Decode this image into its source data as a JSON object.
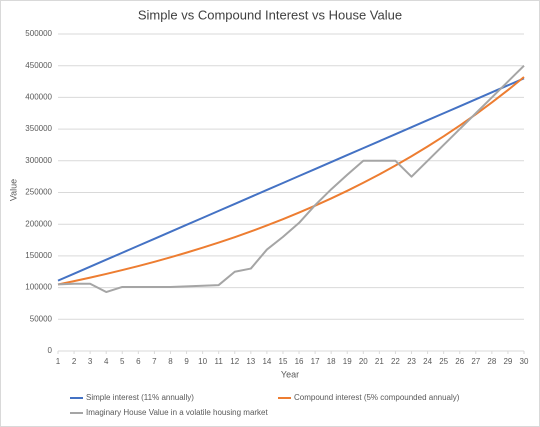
{
  "chart_data": {
    "type": "line",
    "title": "Simple vs Compound Interest vs House Value",
    "x_label": "Year",
    "y_label": "Value",
    "x": [
      1,
      2,
      3,
      4,
      5,
      6,
      7,
      8,
      9,
      10,
      11,
      12,
      13,
      14,
      15,
      16,
      17,
      18,
      19,
      20,
      21,
      22,
      23,
      24,
      25,
      26,
      27,
      28,
      29,
      30
    ],
    "xlim": [
      1,
      30
    ],
    "xticks": [
      1,
      2,
      3,
      4,
      5,
      6,
      7,
      8,
      9,
      10,
      11,
      12,
      13,
      14,
      15,
      16,
      17,
      18,
      19,
      20,
      21,
      22,
      23,
      24,
      25,
      26,
      27,
      28,
      29,
      30
    ],
    "ylim": [
      0,
      500000
    ],
    "yticks": [
      0,
      50000,
      100000,
      150000,
      200000,
      250000,
      300000,
      350000,
      400000,
      450000,
      500000
    ],
    "grid": true,
    "legend": "bottom",
    "series": [
      {
        "name": "Simple interest (11% annually)",
        "color": "#4472c4",
        "values": [
          111000,
          122000,
          133000,
          144000,
          155000,
          166000,
          177000,
          188000,
          199000,
          210000,
          221000,
          232000,
          243000,
          254000,
          265000,
          276000,
          287000,
          298000,
          309000,
          320000,
          331000,
          342000,
          353000,
          364000,
          375000,
          386000,
          397000,
          408000,
          419000,
          430000
        ]
      },
      {
        "name": "Compound interest (5% compounded annualy)",
        "color": "#ed7d31",
        "values": [
          105000,
          110250,
          115763,
          121551,
          127628,
          134010,
          140710,
          147746,
          155133,
          162889,
          171034,
          179586,
          188565,
          197993,
          207893,
          218287,
          229202,
          240662,
          252695,
          265330,
          278596,
          292526,
          307152,
          322510,
          338635,
          355567,
          373346,
          392013,
          411614,
          432194
        ]
      },
      {
        "name": "Imaginary House Value in a volatile housing market",
        "color": "#a5a5a5",
        "values": [
          105000,
          106000,
          106000,
          93000,
          101000,
          101000,
          101000,
          101000,
          102000,
          103000,
          104000,
          125000,
          130000,
          160000,
          180000,
          202000,
          230000,
          255000,
          278000,
          300000,
          300000,
          300000,
          275000,
          300000,
          325000,
          350000,
          375000,
          400000,
          425000,
          450000
        ]
      }
    ]
  }
}
